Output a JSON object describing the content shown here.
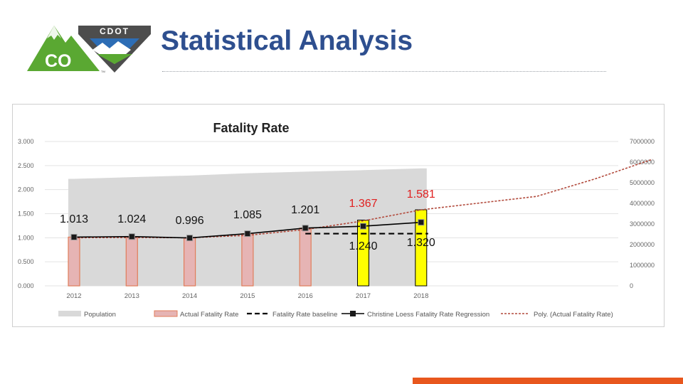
{
  "slide": {
    "title": "Statistical Analysis"
  },
  "logo": {
    "co_text": "CO",
    "cdot_text": "CDOT",
    "tm": "TM"
  },
  "colors": {
    "title": "#2e4f8f",
    "population": "#d9d9d9",
    "actual_bar": "#e6b4b4",
    "actual_bar_edge": "#e07d5a",
    "highlight_bar": "#ffff00",
    "regression": "#000000",
    "baseline": "#000000",
    "poly": "#b24a3c",
    "label_red": "#e02020",
    "accent_orange": "#e8571d",
    "logo_green": "#5aa832",
    "logo_gray": "#4d4d4d"
  },
  "chart_data": {
    "type": "bar",
    "title": "Fatality Rate",
    "categories": [
      "2012",
      "2013",
      "2014",
      "2015",
      "2016",
      "2017",
      "2018"
    ],
    "y_left": {
      "ylim": [
        0,
        3
      ],
      "ticks": [
        "0.000",
        "0.500",
        "1.000",
        "1.500",
        "2.000",
        "2.500",
        "3.000"
      ]
    },
    "y_right": {
      "ylim": [
        0,
        7000000
      ],
      "ticks": [
        "0",
        "1000000",
        "2000000",
        "3000000",
        "4000000",
        "5000000",
        "6000000",
        "7000000"
      ]
    },
    "series": [
      {
        "name": "Population",
        "kind": "area",
        "axis": "right",
        "values": [
          5190000,
          5270000,
          5350000,
          5460000,
          5540000,
          5610000,
          5700000
        ]
      },
      {
        "name": "Actual Fatality Rate",
        "kind": "bar",
        "axis": "left",
        "values": [
          1.013,
          1.024,
          0.996,
          1.085,
          1.201,
          1.367,
          1.581
        ],
        "highlight_from_index": 5
      },
      {
        "name": "Fatality Rate baseline",
        "kind": "dashed-line",
        "axis": "left",
        "values": [
          null,
          null,
          null,
          null,
          1.085,
          1.085,
          1.085
        ]
      },
      {
        "name": "Christine Loess Fatality Rate Regression",
        "kind": "line-markers",
        "axis": "left",
        "values": [
          1.013,
          1.024,
          0.996,
          1.085,
          1.201,
          1.24,
          1.32
        ]
      },
      {
        "name": "Poly. (Actual Fatality Rate)",
        "kind": "dotted-trend",
        "axis": "left",
        "values": [
          1.0,
          1.005,
          1.0,
          1.05,
          1.17,
          1.35,
          1.58
        ],
        "extended_x": [
          8.0,
          9.0,
          10.0
        ],
        "extended_values": [
          1.86,
          2.22,
          2.63
        ]
      }
    ],
    "data_labels": [
      {
        "text": "1.013",
        "index": 0,
        "color": "black"
      },
      {
        "text": "1.024",
        "index": 1,
        "color": "black"
      },
      {
        "text": "0.996",
        "index": 2,
        "color": "black"
      },
      {
        "text": "1.085",
        "index": 3,
        "color": "black"
      },
      {
        "text": "1.201",
        "index": 4,
        "color": "black"
      },
      {
        "text": "1.367",
        "index": 5,
        "color": "red"
      },
      {
        "text": "1.581",
        "index": 6,
        "color": "red"
      },
      {
        "text": "1.240",
        "index": 5,
        "color": "black"
      },
      {
        "text": "1.320",
        "index": 6,
        "color": "black"
      }
    ],
    "legend": {
      "position": "bottom",
      "items": [
        "Population",
        "Actual Fatality Rate",
        "Fatality Rate baseline",
        "Christine Loess Fatality Rate Regression",
        "Poly. (Actual Fatality Rate)"
      ]
    },
    "grid": true
  }
}
